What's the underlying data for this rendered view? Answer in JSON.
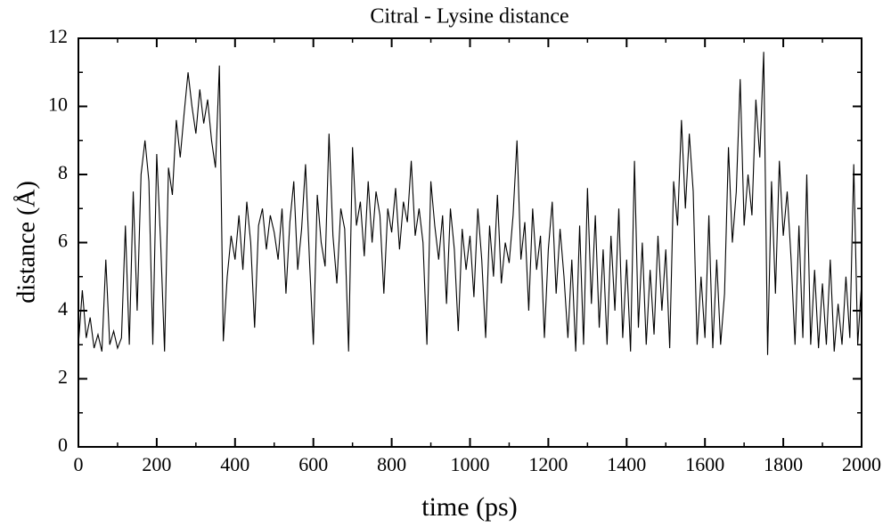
{
  "chart_data": {
    "type": "line",
    "title": "Citral - Lysine distance",
    "x_label": "time (ps)",
    "y_label": "distance (Å)",
    "xlim": [
      0,
      2000
    ],
    "xticks": [
      0,
      200,
      400,
      600,
      800,
      1000,
      1200,
      1400,
      1600,
      1800,
      2000
    ],
    "ylim": [
      0,
      12
    ],
    "yticks": [
      0,
      2,
      4,
      6,
      8,
      10,
      12
    ],
    "x": [
      0,
      10,
      20,
      30,
      40,
      50,
      60,
      70,
      80,
      90,
      100,
      110,
      120,
      130,
      140,
      150,
      160,
      170,
      180,
      190,
      200,
      210,
      220,
      230,
      240,
      250,
      260,
      270,
      280,
      290,
      300,
      310,
      320,
      330,
      340,
      350,
      360,
      370,
      380,
      390,
      400,
      410,
      420,
      430,
      440,
      450,
      460,
      470,
      480,
      490,
      500,
      510,
      520,
      530,
      540,
      550,
      560,
      570,
      580,
      590,
      600,
      610,
      620,
      630,
      640,
      650,
      660,
      670,
      680,
      690,
      700,
      710,
      720,
      730,
      740,
      750,
      760,
      770,
      780,
      790,
      800,
      810,
      820,
      830,
      840,
      850,
      860,
      870,
      880,
      890,
      900,
      910,
      920,
      930,
      940,
      950,
      960,
      970,
      980,
      990,
      1000,
      1010,
      1020,
      1030,
      1040,
      1050,
      1060,
      1070,
      1080,
      1090,
      1100,
      1110,
      1120,
      1130,
      1140,
      1150,
      1160,
      1170,
      1180,
      1190,
      1200,
      1210,
      1220,
      1230,
      1240,
      1250,
      1260,
      1270,
      1280,
      1290,
      1300,
      1310,
      1320,
      1330,
      1340,
      1350,
      1360,
      1370,
      1380,
      1390,
      1400,
      1410,
      1420,
      1430,
      1440,
      1450,
      1460,
      1470,
      1480,
      1490,
      1500,
      1510,
      1520,
      1530,
      1540,
      1550,
      1560,
      1570,
      1580,
      1590,
      1600,
      1610,
      1620,
      1630,
      1640,
      1650,
      1660,
      1670,
      1680,
      1690,
      1700,
      1710,
      1720,
      1730,
      1740,
      1750,
      1760,
      1770,
      1780,
      1790,
      1800,
      1810,
      1820,
      1830,
      1840,
      1850,
      1860,
      1870,
      1880,
      1890,
      1900,
      1910,
      1920,
      1930,
      1940,
      1950,
      1960,
      1970,
      1980,
      1990,
      2000
    ],
    "series": [
      {
        "color": "#000000",
        "values": [
          3.0,
          4.6,
          3.2,
          3.8,
          2.9,
          3.3,
          2.8,
          5.5,
          3.0,
          3.4,
          2.9,
          3.2,
          6.5,
          3.0,
          7.5,
          4.0,
          8.0,
          9.0,
          7.8,
          3.0,
          8.6,
          6.0,
          2.8,
          8.2,
          7.4,
          9.6,
          8.5,
          9.8,
          11.0,
          10.0,
          9.2,
          10.5,
          9.5,
          10.2,
          9.0,
          8.2,
          11.2,
          3.1,
          5.0,
          6.2,
          5.5,
          6.8,
          5.2,
          7.2,
          6.0,
          3.5,
          6.5,
          7.0,
          5.8,
          6.8,
          6.3,
          5.5,
          7.0,
          4.5,
          6.6,
          7.8,
          5.2,
          6.4,
          8.3,
          5.5,
          3.0,
          7.4,
          6.0,
          5.3,
          9.2,
          6.2,
          4.8,
          7.0,
          6.4,
          2.8,
          8.8,
          6.5,
          7.2,
          5.6,
          7.8,
          6.0,
          7.5,
          6.8,
          4.5,
          7.0,
          6.3,
          7.6,
          5.8,
          7.2,
          6.6,
          8.4,
          6.2,
          7.0,
          6.0,
          3.0,
          7.8,
          6.5,
          5.5,
          6.8,
          4.2,
          7.0,
          5.8,
          3.4,
          6.4,
          5.2,
          6.2,
          4.4,
          7.0,
          5.5,
          3.2,
          6.5,
          5.0,
          7.4,
          4.8,
          6.0,
          5.4,
          6.8,
          9.0,
          5.5,
          6.6,
          4.0,
          7.0,
          5.2,
          6.2,
          3.2,
          5.8,
          7.2,
          4.5,
          6.4,
          5.0,
          3.2,
          5.5,
          2.8,
          6.5,
          3.0,
          7.6,
          4.2,
          6.8,
          3.5,
          5.8,
          3.0,
          6.2,
          4.0,
          7.0,
          3.2,
          5.5,
          2.8,
          8.4,
          3.5,
          6.0,
          3.0,
          5.2,
          3.3,
          6.2,
          4.0,
          5.8,
          2.9,
          7.8,
          6.5,
          9.6,
          7.0,
          9.2,
          7.5,
          3.0,
          5.0,
          3.2,
          6.8,
          2.9,
          5.5,
          3.0,
          4.5,
          8.8,
          6.0,
          7.5,
          10.8,
          6.5,
          8.0,
          6.8,
          10.2,
          8.5,
          11.6,
          2.7,
          7.8,
          4.5,
          8.4,
          6.2,
          7.5,
          5.5,
          3.0,
          6.5,
          3.2,
          8.0,
          3.0,
          5.2,
          2.9,
          4.8,
          3.0,
          5.5,
          2.8,
          4.2,
          3.0,
          5.0,
          3.2,
          8.3,
          3.0,
          4.8
        ]
      }
    ]
  }
}
